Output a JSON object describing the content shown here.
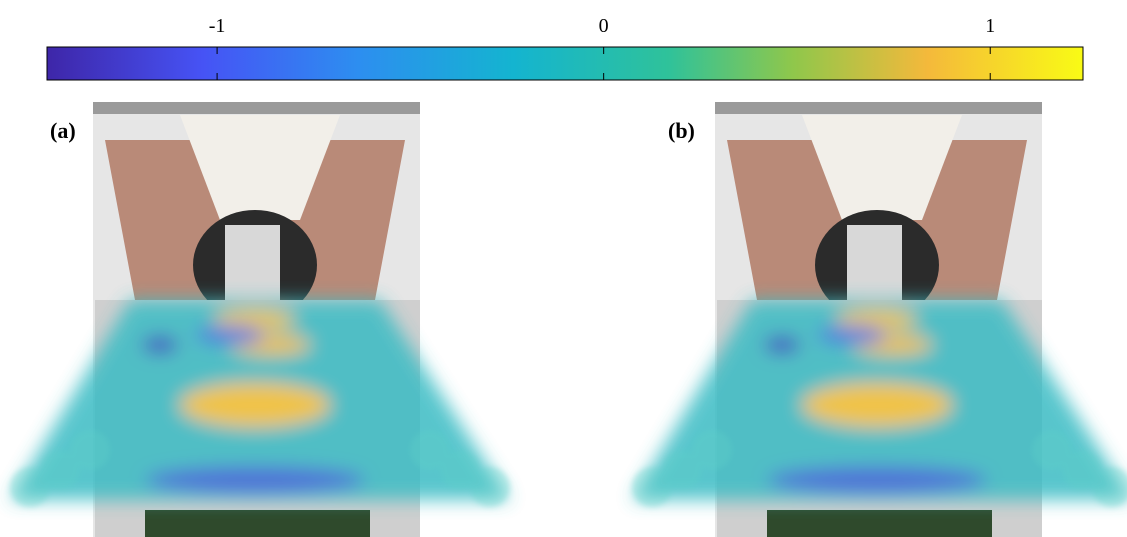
{
  "colorbar": {
    "lim": [
      -1.44,
      1.24
    ],
    "ticks": [
      -1,
      0,
      1
    ]
  },
  "panels": [
    {
      "label": "(a)"
    },
    {
      "label": "(b)"
    }
  ]
}
